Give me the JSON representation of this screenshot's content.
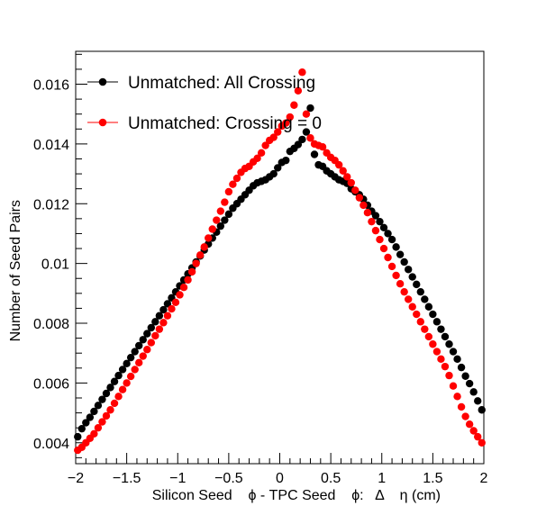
{
  "chart_data": {
    "type": "scatter",
    "xlabel": "Silicon Seed    ϕ - TPC Seed    ϕ:   Δ    η (cm)",
    "ylabel": "Number of Seed Pairs",
    "xlim": [
      -2,
      2
    ],
    "ylim": [
      0.0033,
      0.0171
    ],
    "x_ticks": [
      -2,
      -1.5,
      -1,
      -0.5,
      0,
      0.5,
      1,
      1.5,
      2
    ],
    "x_tick_labels": [
      "−2",
      "−1.5",
      "−1",
      "−0.5",
      "0",
      "0.5",
      "1",
      "1.5",
      "2"
    ],
    "y_ticks": [
      0.004,
      0.006,
      0.008,
      0.01,
      0.012,
      0.014,
      0.016
    ],
    "y_tick_labels": [
      "0.004",
      "0.006",
      "0.008",
      "0.01",
      "0.012",
      "0.014",
      "0.016"
    ],
    "grid": false,
    "legend_position": "top-left",
    "series": [
      {
        "name": "Unmatched: All Crossing",
        "color": "#000000",
        "x": [
          -1.98,
          -1.94,
          -1.9,
          -1.86,
          -1.82,
          -1.78,
          -1.74,
          -1.7,
          -1.66,
          -1.62,
          -1.58,
          -1.54,
          -1.5,
          -1.46,
          -1.42,
          -1.38,
          -1.34,
          -1.3,
          -1.26,
          -1.22,
          -1.18,
          -1.14,
          -1.1,
          -1.06,
          -1.02,
          -0.98,
          -0.94,
          -0.9,
          -0.86,
          -0.82,
          -0.78,
          -0.74,
          -0.7,
          -0.66,
          -0.62,
          -0.58,
          -0.54,
          -0.5,
          -0.46,
          -0.42,
          -0.38,
          -0.34,
          -0.3,
          -0.26,
          -0.22,
          -0.18,
          -0.14,
          -0.1,
          -0.06,
          -0.02,
          0.02,
          0.06,
          0.1,
          0.14,
          0.18,
          0.22,
          0.26,
          0.3,
          0.34,
          0.38,
          0.42,
          0.46,
          0.5,
          0.54,
          0.58,
          0.62,
          0.66,
          0.7,
          0.74,
          0.78,
          0.82,
          0.86,
          0.9,
          0.94,
          0.98,
          1.02,
          1.06,
          1.1,
          1.14,
          1.18,
          1.22,
          1.26,
          1.3,
          1.34,
          1.38,
          1.42,
          1.46,
          1.5,
          1.54,
          1.58,
          1.62,
          1.66,
          1.7,
          1.74,
          1.78,
          1.82,
          1.86,
          1.9,
          1.94,
          1.98
        ],
        "y": [
          0.0042,
          0.00447,
          0.00467,
          0.00485,
          0.00505,
          0.00525,
          0.00545,
          0.00565,
          0.00585,
          0.00605,
          0.00625,
          0.00645,
          0.00665,
          0.00685,
          0.00705,
          0.00725,
          0.00745,
          0.00765,
          0.00785,
          0.00805,
          0.00825,
          0.00845,
          0.00865,
          0.00885,
          0.00905,
          0.00925,
          0.00945,
          0.00965,
          0.00985,
          0.01005,
          0.01025,
          0.01045,
          0.01065,
          0.01085,
          0.01105,
          0.01125,
          0.01145,
          0.01165,
          0.01185,
          0.012,
          0.01215,
          0.0123,
          0.01245,
          0.0126,
          0.0127,
          0.01275,
          0.0128,
          0.0129,
          0.013,
          0.0132,
          0.01338,
          0.01345,
          0.01375,
          0.01385,
          0.01398,
          0.01415,
          0.0144,
          0.0152,
          0.01365,
          0.0133,
          0.01325,
          0.0131,
          0.013,
          0.0129,
          0.0128,
          0.01275,
          0.01268,
          0.0125,
          0.0124,
          0.0123,
          0.01215,
          0.01195,
          0.01175,
          0.0116,
          0.0114,
          0.0112,
          0.011,
          0.0108,
          0.01055,
          0.0103,
          0.01005,
          0.0098,
          0.00955,
          0.0093,
          0.00905,
          0.0088,
          0.00855,
          0.0083,
          0.00805,
          0.0078,
          0.00755,
          0.0073,
          0.00705,
          0.0068,
          0.00652,
          0.00623,
          0.00598,
          0.0057,
          0.0054,
          0.0051
        ]
      },
      {
        "name": "Unmatched: Crossing = 0",
        "color": "#ff0000",
        "x": [
          -1.98,
          -1.94,
          -1.9,
          -1.86,
          -1.82,
          -1.78,
          -1.74,
          -1.7,
          -1.66,
          -1.62,
          -1.58,
          -1.54,
          -1.5,
          -1.46,
          -1.42,
          -1.38,
          -1.34,
          -1.3,
          -1.26,
          -1.22,
          -1.18,
          -1.14,
          -1.1,
          -1.06,
          -1.02,
          -0.98,
          -0.94,
          -0.9,
          -0.86,
          -0.82,
          -0.78,
          -0.74,
          -0.7,
          -0.66,
          -0.62,
          -0.58,
          -0.54,
          -0.5,
          -0.46,
          -0.42,
          -0.38,
          -0.34,
          -0.3,
          -0.26,
          -0.22,
          -0.18,
          -0.14,
          -0.1,
          -0.06,
          -0.02,
          0.02,
          0.06,
          0.1,
          0.14,
          0.18,
          0.22,
          0.26,
          0.3,
          0.34,
          0.38,
          0.42,
          0.46,
          0.5,
          0.54,
          0.58,
          0.62,
          0.66,
          0.7,
          0.74,
          0.78,
          0.82,
          0.86,
          0.9,
          0.94,
          0.98,
          1.02,
          1.06,
          1.1,
          1.14,
          1.18,
          1.22,
          1.26,
          1.3,
          1.34,
          1.38,
          1.42,
          1.46,
          1.5,
          1.54,
          1.58,
          1.62,
          1.66,
          1.7,
          1.74,
          1.78,
          1.82,
          1.86,
          1.9,
          1.94,
          1.98
        ],
        "y": [
          0.00375,
          0.00385,
          0.004,
          0.00415,
          0.0043,
          0.0045,
          0.0047,
          0.0049,
          0.0051,
          0.00532,
          0.00555,
          0.00578,
          0.006,
          0.00622,
          0.00645,
          0.00668,
          0.0069,
          0.00712,
          0.00735,
          0.00758,
          0.0078,
          0.00802,
          0.00825,
          0.00848,
          0.0087,
          0.00895,
          0.0092,
          0.00945,
          0.00972,
          0.01,
          0.01028,
          0.01055,
          0.01085,
          0.01115,
          0.01145,
          0.01175,
          0.01205,
          0.0124,
          0.01265,
          0.01285,
          0.01305,
          0.01318,
          0.01325,
          0.0134,
          0.01352,
          0.0137,
          0.01395,
          0.01412,
          0.01422,
          0.0144,
          0.0146,
          0.0147,
          0.0149,
          0.0153,
          0.01578,
          0.0164,
          0.015,
          0.0142,
          0.014,
          0.01395,
          0.0139,
          0.0137,
          0.01355,
          0.01345,
          0.0133,
          0.0131,
          0.0129,
          0.0127,
          0.01245,
          0.0122,
          0.01195,
          0.0117,
          0.0114,
          0.0111,
          0.0108,
          0.0105,
          0.0102,
          0.0099,
          0.0096,
          0.00932,
          0.00905,
          0.0088,
          0.00855,
          0.0083,
          0.00805,
          0.0078,
          0.00755,
          0.0073,
          0.00705,
          0.0068,
          0.00655,
          0.00625,
          0.0059,
          0.00555,
          0.0052,
          0.00488,
          0.00462,
          0.0044,
          0.0042,
          0.004
        ]
      }
    ]
  }
}
